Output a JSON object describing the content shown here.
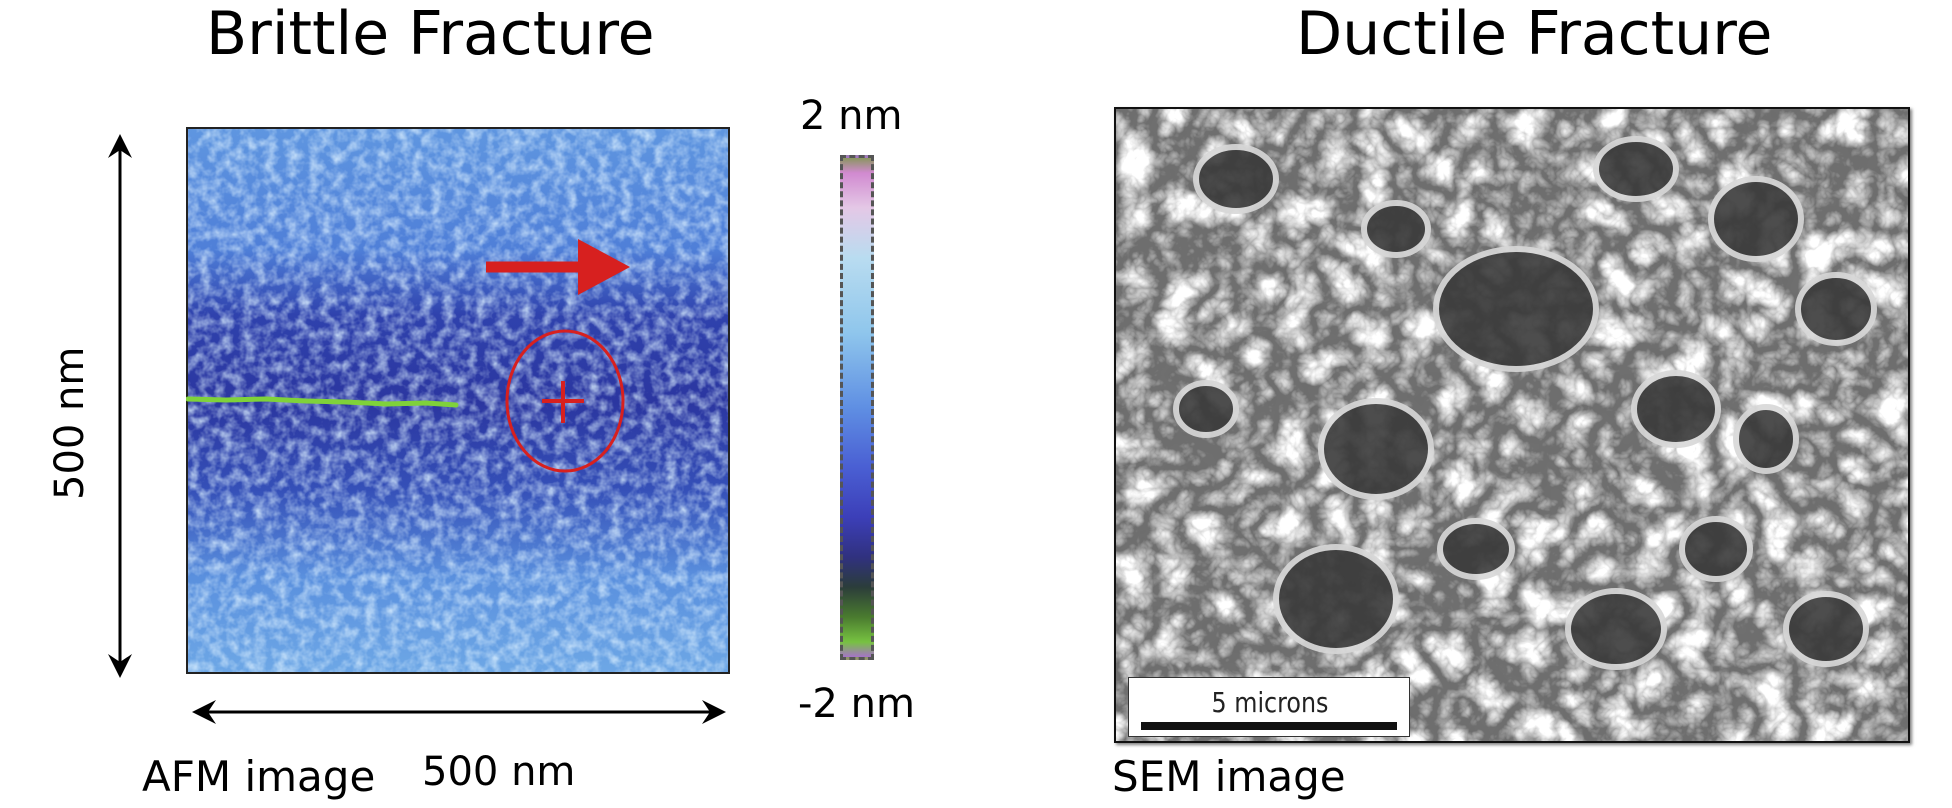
{
  "left_panel": {
    "title": "Brittle Fracture",
    "caption": "AFM image",
    "x_axis_label": "500 nm",
    "y_axis_label": "500 nm",
    "scale_max_label": "2 nm",
    "scale_min_label": "-2 nm"
  },
  "right_panel": {
    "title": "Ductile Fracture",
    "caption": "SEM image",
    "scale_bar_label": "5 microns"
  },
  "colors": {
    "arrow": "#d7201f",
    "crack": "#7fd23a",
    "afm_base": "#3e62c8"
  },
  "icons": [
    "arrow-right-icon",
    "double-arrow-vertical-icon",
    "double-arrow-horizontal-icon",
    "crosshair-icon"
  ]
}
